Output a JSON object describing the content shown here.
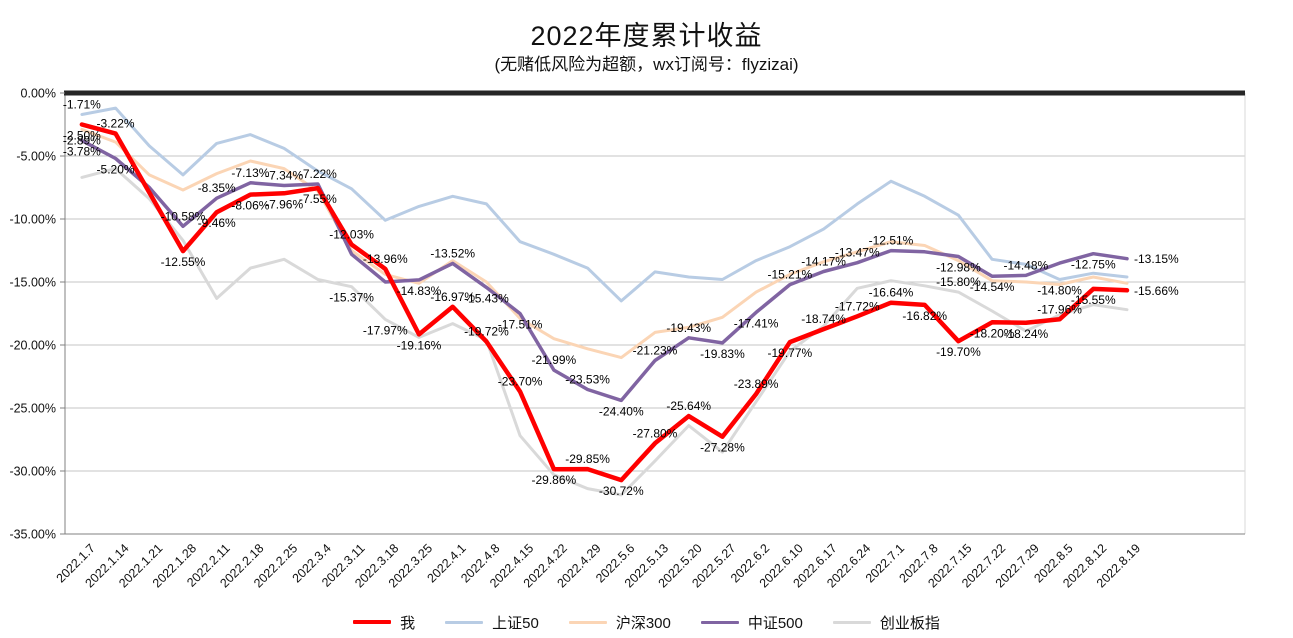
{
  "page": {
    "title": "2022年度累计收益",
    "subtitle": "(无赌低风险为超额，wx订阅号：flyzizai)"
  },
  "chart_data": {
    "type": "line",
    "title": "2022年度累计收益",
    "subtitle": "(无赌低风险为超额，wx订阅号：flyzizai)",
    "categories": [
      "2022.1.7",
      "2022.1.14",
      "2022.1.21",
      "2022.1.28",
      "2022.2.11",
      "2022.2.18",
      "2022.2.25",
      "2022.3.4",
      "2022.3.11",
      "2022.3.18",
      "2022.3.25",
      "2022.4.1",
      "2022.4.8",
      "2022.4.15",
      "2022.4.22",
      "2022.4.29",
      "2022.5.6",
      "2022.5.13",
      "2022.5.20",
      "2022.5.27",
      "2022.6.2",
      "2022.6.10",
      "2022.6.17",
      "2022.6.24",
      "2022.7.1",
      "2022.7.8",
      "2022.7.15",
      "2022.7.22",
      "2022.7.29",
      "2022.8.5",
      "2022.8.12",
      "2022.8.19"
    ],
    "total_slots": 35,
    "y_axis": {
      "min": -35,
      "max": 0,
      "step": 5,
      "format": "percent",
      "tick_labels": [
        "0.00%",
        "-5.00%",
        "-10.00%",
        "-15.00%",
        "-20.00%",
        "-25.00%",
        "-30.00%",
        "-35.00%"
      ]
    },
    "grid": true,
    "legend_position": "bottom",
    "colors": {
      "zero_line": "#262626",
      "gridline": "#c6c6c6",
      "axis": "#808080",
      "plot_border": "#d9d9d9",
      "label_text": "#000000"
    },
    "series": [
      {
        "name": "上证50",
        "color": "#b8cce4",
        "width": 3,
        "values": [
          -1.71,
          -1.2,
          -4.2,
          -6.5,
          -4.0,
          -3.3,
          -4.4,
          -6.2,
          -7.6,
          -10.1,
          -9.0,
          -8.2,
          -8.8,
          -11.8,
          -12.8,
          -13.9,
          -16.5,
          -14.2,
          -14.6,
          -14.8,
          -13.3,
          -12.2,
          -10.8,
          -8.8,
          -7.0,
          -8.2,
          -9.7,
          -13.2,
          -13.6,
          -14.8,
          -14.3,
          -14.6
        ],
        "labels": [
          "-1.71%",
          null,
          null,
          null,
          null,
          null,
          null,
          null,
          null,
          null,
          null,
          null,
          null,
          null,
          null,
          null,
          null,
          null,
          null,
          null,
          null,
          null,
          null,
          null,
          null,
          null,
          null,
          null,
          null,
          "-14.80%",
          null,
          null
        ],
        "label_pos": [
          "a",
          null,
          null,
          null,
          null,
          null,
          null,
          null,
          null,
          null,
          null,
          null,
          null,
          null,
          null,
          null,
          null,
          null,
          null,
          null,
          null,
          null,
          null,
          null,
          null,
          null,
          null,
          null,
          null,
          "b",
          null,
          null
        ]
      },
      {
        "name": "沪深300",
        "color": "#fbd5b5",
        "width": 3,
        "values": [
          -2.89,
          -3.9,
          -6.5,
          -7.7,
          -6.4,
          -5.4,
          -6.0,
          -7.8,
          -12.5,
          -14.4,
          -15.1,
          -13.3,
          -15.0,
          -17.9,
          -19.5,
          -20.3,
          -21.0,
          -19.0,
          -18.6,
          -17.8,
          -15.8,
          -14.4,
          -13.4,
          -12.6,
          -11.8,
          -12.1,
          -13.3,
          -14.9,
          -15.0,
          -15.2,
          -14.6,
          -15.1
        ],
        "labels": [
          "-2.89%",
          null,
          null,
          null,
          null,
          null,
          null,
          null,
          null,
          null,
          null,
          null,
          null,
          null,
          null,
          null,
          null,
          null,
          null,
          null,
          null,
          null,
          null,
          null,
          null,
          null,
          null,
          null,
          null,
          null,
          null,
          null
        ],
        "label_pos": [
          "b",
          null,
          null,
          null,
          null,
          null,
          null,
          null,
          null,
          null,
          null,
          null,
          null,
          null,
          null,
          null,
          null,
          null,
          null,
          null,
          null,
          null,
          null,
          null,
          null,
          null,
          null,
          null,
          null,
          null,
          null,
          null
        ]
      },
      {
        "name": "创业板指",
        "color": "#d9d9d9",
        "width": 3,
        "values": [
          -6.7,
          -6.0,
          -8.4,
          -11.7,
          -16.3,
          -13.9,
          -13.2,
          -14.8,
          -15.37,
          -17.97,
          -19.4,
          -18.3,
          -19.6,
          -27.2,
          -30.3,
          -31.4,
          -31.9,
          -29.2,
          -26.4,
          -28.5,
          -24.5,
          -20.5,
          -18.5,
          -15.5,
          -14.9,
          -15.3,
          -15.8,
          -17.3,
          -18.9,
          -17.6,
          -16.8,
          -17.2
        ],
        "labels": [
          null,
          null,
          null,
          null,
          null,
          null,
          null,
          null,
          "-15.37%",
          "-17.97%",
          null,
          null,
          null,
          null,
          null,
          null,
          null,
          null,
          null,
          null,
          null,
          null,
          null,
          null,
          null,
          null,
          "-15.80%",
          null,
          null,
          null,
          null,
          null
        ],
        "label_pos": [
          null,
          null,
          null,
          null,
          null,
          null,
          null,
          null,
          "b",
          "b",
          null,
          null,
          null,
          null,
          null,
          null,
          null,
          null,
          null,
          null,
          null,
          null,
          null,
          null,
          null,
          null,
          "a",
          null,
          null,
          null,
          null,
          null
        ]
      },
      {
        "name": "中证500",
        "color": "#8064a2",
        "width": 3.5,
        "values": [
          -3.78,
          -5.2,
          -7.5,
          -10.58,
          -8.35,
          -7.13,
          -7.34,
          -7.22,
          -12.8,
          -15.0,
          -14.83,
          -13.52,
          -15.43,
          -17.51,
          -21.99,
          -23.53,
          -24.4,
          -21.23,
          -19.43,
          -19.83,
          -17.41,
          -15.21,
          -14.17,
          -13.47,
          -12.51,
          -12.6,
          -12.98,
          -14.54,
          -14.48,
          -13.5,
          -12.75,
          -13.15
        ],
        "labels": [
          "-3.78%",
          "-5.20%",
          null,
          "-10.58%",
          "-8.35%",
          "-7.13%",
          "-7.34%",
          "-7.22%",
          null,
          null,
          "-14.83%",
          "-13.52%",
          "-15.43%",
          "-17.51%",
          "-21.99%",
          "-23.53%",
          "-24.40%",
          "-21.23%",
          "-19.43%",
          "-19.83%",
          "-17.41%",
          "-15.21%",
          "-14.17%",
          "-13.47%",
          "-12.51%",
          null,
          "-12.98%",
          "-14.54%",
          "-14.48%",
          null,
          "-12.75%",
          "-13.15%"
        ],
        "label_pos": [
          "b",
          "b",
          null,
          "a",
          "a",
          "a",
          "a",
          "a",
          null,
          null,
          "b",
          "a",
          "b",
          "b",
          "a",
          "a",
          "b",
          "a",
          "a",
          "b",
          "b",
          "a",
          "a",
          "a",
          "a",
          null,
          "b",
          "b",
          "a",
          null,
          "b",
          "r"
        ]
      },
      {
        "name": "我",
        "color": "#ff0000",
        "width": 4.5,
        "values": [
          -2.5,
          -3.22,
          -7.9,
          -12.55,
          -9.46,
          -8.06,
          -7.96,
          -7.55,
          -12.03,
          -13.96,
          -19.16,
          -16.97,
          -19.72,
          -23.7,
          -29.86,
          -29.85,
          -30.72,
          -27.8,
          -25.64,
          -27.28,
          -23.89,
          -19.77,
          -18.74,
          -17.72,
          -16.64,
          -16.82,
          -19.7,
          -18.2,
          -18.24,
          -17.96,
          -15.55,
          -15.66
        ],
        "labels": [
          "-2.50%",
          "-3.22%",
          null,
          "-12.55%",
          "-9.46%",
          "-8.06%",
          "-7.96%",
          "-7.55%",
          "-12.03%",
          "-13.96%",
          "-19.16%",
          "-16.97%",
          "-19.72%",
          "-23.70%",
          "-29.86%",
          "-29.85%",
          "-30.72%",
          "-27.80%",
          "-25.64%",
          "-27.28%",
          "-23.89%",
          "-19.77%",
          "-18.74%",
          "-17.72%",
          "-16.64%",
          "-16.82%",
          "-19.70%",
          "-18.20%",
          "-18.24%",
          "-17.96%",
          "-15.55%",
          "-15.66%"
        ],
        "label_pos": [
          "b",
          "a",
          null,
          "b",
          "b",
          "b",
          "b",
          "b",
          "a",
          "a",
          "b",
          "a",
          "a",
          "a",
          "b",
          "a",
          "b",
          "a",
          "a",
          "b",
          "a",
          "b",
          "a",
          "a",
          "a",
          "b",
          "b",
          "b",
          "b",
          "a",
          "b",
          "r"
        ]
      }
    ],
    "legend_order": [
      "我",
      "上证50",
      "沪深300",
      "中证500",
      "创业板指"
    ]
  }
}
